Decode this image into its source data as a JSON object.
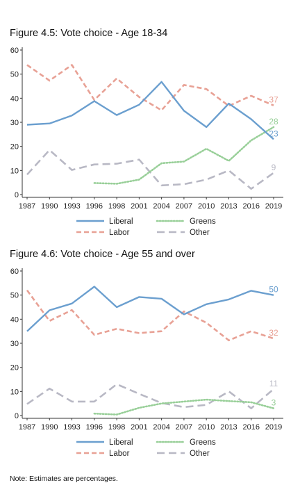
{
  "figures": [
    {
      "title": "Figure 4.5: Vote choice - Age 18-34"
    },
    {
      "title": "Figure 4.6: Vote choice - Age 55 and over"
    }
  ],
  "note": "Note: Estimates are percentages.",
  "colors": {
    "Liberal": "#6b9fcf",
    "Labor": "#e8a195",
    "Greens": "#98cf98",
    "Other": "#b8b8c4"
  },
  "chart_data": [
    {
      "type": "line",
      "title": "Figure 4.5: Vote choice - Age 18-34",
      "categories": [
        "1987",
        "1990",
        "1993",
        "1996",
        "1998",
        "2001",
        "2004",
        "2007",
        "2010",
        "2013",
        "2016",
        "2019"
      ],
      "ylim": [
        0,
        60
      ],
      "yticks": [
        "0",
        "10",
        "20",
        "30",
        "40",
        "50",
        "60"
      ],
      "grid": false,
      "legend": "bottom",
      "legend_order": [
        "Liberal",
        "Greens",
        "Labor",
        "Other"
      ],
      "series": [
        {
          "name": "Liberal",
          "style": "solid",
          "values": [
            29,
            29.5,
            32.8,
            38.8,
            33,
            37.3,
            46.8,
            34.8,
            28,
            37.8,
            31.3,
            23
          ],
          "end_label": "23"
        },
        {
          "name": "Labor",
          "style": "dashed",
          "values": [
            53.8,
            47.3,
            53.8,
            39.3,
            48.2,
            40.5,
            35,
            45.5,
            43.8,
            36.8,
            41,
            37
          ],
          "end_label": "37"
        },
        {
          "name": "Greens",
          "style": "dotted",
          "values": [
            null,
            null,
            null,
            4.8,
            4.5,
            6.2,
            13,
            13.7,
            19,
            14,
            22.5,
            28
          ],
          "end_label": "28"
        },
        {
          "name": "Other",
          "style": "longdash",
          "values": [
            8.3,
            18.5,
            10.2,
            12.5,
            12.8,
            14.5,
            3.8,
            4.3,
            6.2,
            10,
            2.4,
            9
          ],
          "end_label": "9"
        }
      ]
    },
    {
      "type": "line",
      "title": "Figure 4.6: Vote choice - Age 55 and over",
      "categories": [
        "1987",
        "1990",
        "1993",
        "1996",
        "1998",
        "2001",
        "2004",
        "2007",
        "2010",
        "2013",
        "2016",
        "2019"
      ],
      "ylim": [
        0,
        60
      ],
      "yticks": [
        "0",
        "10",
        "20",
        "30",
        "40",
        "50",
        "60"
      ],
      "grid": false,
      "legend": "bottom",
      "legend_order": [
        "Liberal",
        "Greens",
        "Labor",
        "Other"
      ],
      "series": [
        {
          "name": "Liberal",
          "style": "solid",
          "values": [
            35,
            43.7,
            46.5,
            53.5,
            45,
            49.2,
            48.5,
            42,
            46.2,
            48.2,
            51.8,
            50
          ],
          "end_label": "50"
        },
        {
          "name": "Labor",
          "style": "dashed",
          "values": [
            52,
            39.3,
            43.8,
            33.5,
            36,
            34.2,
            35,
            43.2,
            38.5,
            31.2,
            35,
            32
          ],
          "end_label": "32"
        },
        {
          "name": "Greens",
          "style": "dotted",
          "values": [
            null,
            null,
            null,
            0.8,
            0.4,
            3.2,
            5,
            5.8,
            6.6,
            6,
            5.5,
            3
          ],
          "end_label": "3"
        },
        {
          "name": "Other",
          "style": "longdash",
          "values": [
            4.8,
            11.2,
            5.8,
            5.8,
            13,
            9,
            5.2,
            3.5,
            4.4,
            10,
            3,
            11
          ],
          "end_label": "11"
        }
      ]
    }
  ]
}
